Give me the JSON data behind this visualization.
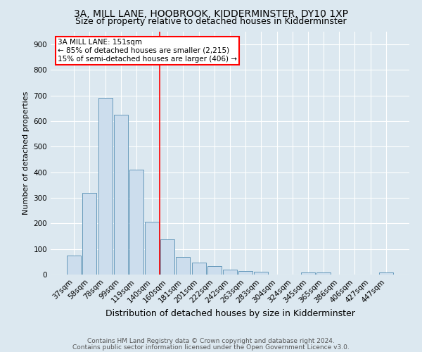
{
  "title1": "3A, MILL LANE, HOOBROOK, KIDDERMINSTER, DY10 1XP",
  "title2": "Size of property relative to detached houses in Kidderminster",
  "xlabel": "Distribution of detached houses by size in Kidderminster",
  "ylabel": "Number of detached properties",
  "categories": [
    "37sqm",
    "58sqm",
    "78sqm",
    "99sqm",
    "119sqm",
    "140sqm",
    "160sqm",
    "181sqm",
    "201sqm",
    "222sqm",
    "242sqm",
    "263sqm",
    "283sqm",
    "304sqm",
    "324sqm",
    "345sqm",
    "365sqm",
    "386sqm",
    "406sqm",
    "427sqm",
    "447sqm"
  ],
  "values": [
    75,
    320,
    690,
    625,
    410,
    207,
    137,
    70,
    48,
    34,
    20,
    13,
    10,
    0,
    0,
    8,
    7,
    0,
    0,
    0,
    8
  ],
  "bar_color": "#ccdded",
  "bar_edge_color": "#6699bb",
  "vline_color": "red",
  "annotation_text": "3A MILL LANE: 151sqm\n← 85% of detached houses are smaller (2,215)\n15% of semi-detached houses are larger (406) →",
  "annotation_box_color": "white",
  "annotation_box_edge_color": "red",
  "ylim": [
    0,
    950
  ],
  "yticks": [
    0,
    100,
    200,
    300,
    400,
    500,
    600,
    700,
    800,
    900
  ],
  "footer1": "Contains HM Land Registry data © Crown copyright and database right 2024.",
  "footer2": "Contains public sector information licensed under the Open Government Licence v3.0.",
  "background_color": "#dce8f0",
  "plot_bg_color": "#dce8f0",
  "title1_fontsize": 10,
  "title2_fontsize": 9,
  "xlabel_fontsize": 9,
  "ylabel_fontsize": 8,
  "tick_fontsize": 7.5,
  "footer_fontsize": 6.5,
  "vline_bar_index": 5.5
}
